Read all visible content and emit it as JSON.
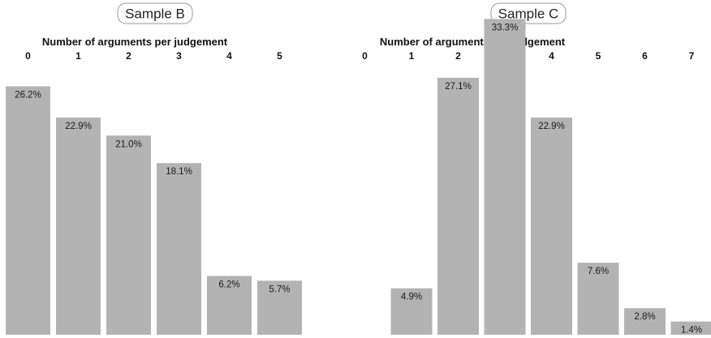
{
  "chart_data": [
    {
      "type": "bar",
      "title": "Sample B",
      "xlabel": "Number of arguments per judgement",
      "ylabel": "",
      "categories": [
        "0",
        "1",
        "2",
        "3",
        "4",
        "5"
      ],
      "values": [
        26.2,
        22.9,
        21.0,
        18.1,
        6.2,
        5.7
      ],
      "value_labels": [
        "26.2%",
        "22.9%",
        "21.0%",
        "18.1%",
        "6.2%",
        "5.7%"
      ],
      "axis_position": "top",
      "grid": false,
      "bar_color": "#b3b3b3"
    },
    {
      "type": "bar",
      "title": "Sample C",
      "xlabel": "Number of arguments per judgement",
      "ylabel": "",
      "categories": [
        "0",
        "1",
        "2",
        "3",
        "4",
        "5",
        "6",
        "7"
      ],
      "values": [
        0,
        4.9,
        27.1,
        33.3,
        22.9,
        7.6,
        2.8,
        1.4
      ],
      "value_labels": [
        "",
        "4.9%",
        "27.1%",
        "33.3%",
        "22.9%",
        "7.6%",
        "2.8%",
        "1.4%"
      ],
      "axis_position": "top",
      "grid": false,
      "bar_color": "#b3b3b3"
    }
  ]
}
